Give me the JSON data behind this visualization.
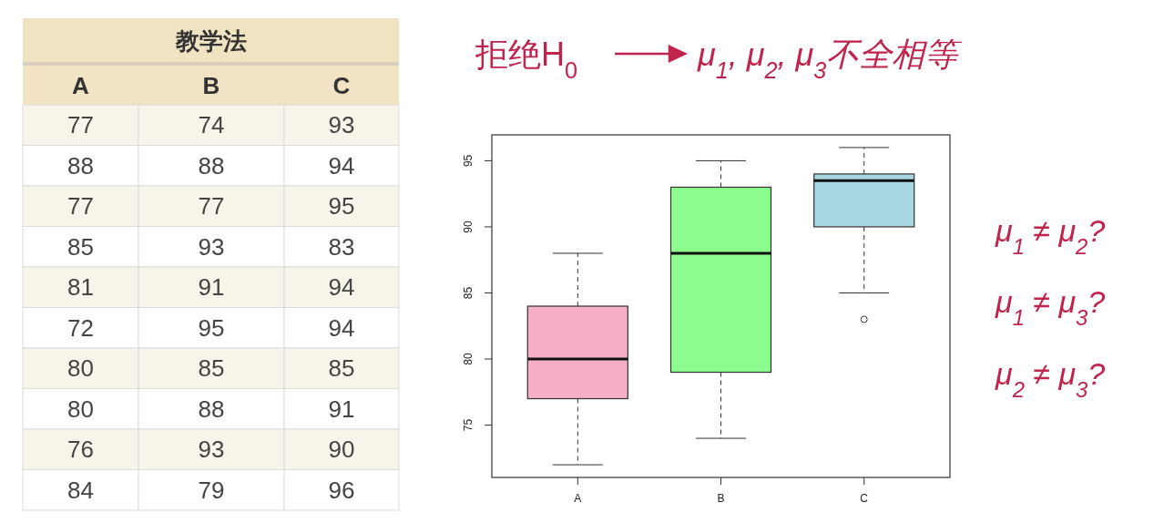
{
  "chart_data": [
    {
      "type": "other",
      "title": "教学法",
      "annotations": [
        "A",
        "B",
        "C",
        "77",
        "74",
        "93",
        "88",
        "88",
        "94",
        "77",
        "77",
        "95",
        "85",
        "93",
        "83",
        "81",
        "91",
        "94",
        "72",
        "95",
        "94",
        "80",
        "85",
        "85",
        "80",
        "88",
        "91",
        "76",
        "93",
        "90",
        "84",
        "79",
        "96"
      ]
    },
    {
      "type": "box",
      "categories": [
        "A",
        "B",
        "C"
      ],
      "colors": [
        "#f6aec6",
        "#8cfc8c",
        "#a9d7e2"
      ],
      "ylim": [
        71.04,
        96.96
      ],
      "yticks": [
        75,
        80,
        85,
        90,
        95
      ],
      "boxes": [
        {
          "low": 72,
          "q1": 77,
          "median": 80,
          "q3": 84,
          "high": 88
        },
        {
          "low": 74,
          "q1": 79,
          "median": 88,
          "q3": 93,
          "high": 95
        },
        {
          "low": 85,
          "q1": 90,
          "median": 93.5,
          "q3": 94,
          "high": 96,
          "outliers": [
            83
          ]
        }
      ],
      "annotations": [
        "拒绝H$_{0}$",
        "μ$_{1}$, μ$_{2}$, μ$_{3}$不全相等",
        "μ$_{1}$ ≠ μ$_{2}$?",
        "μ$_{1}$ ≠ μ$_{3}$?",
        "μ$_{2}$ ≠ μ$_{3}$?"
      ]
    }
  ]
}
